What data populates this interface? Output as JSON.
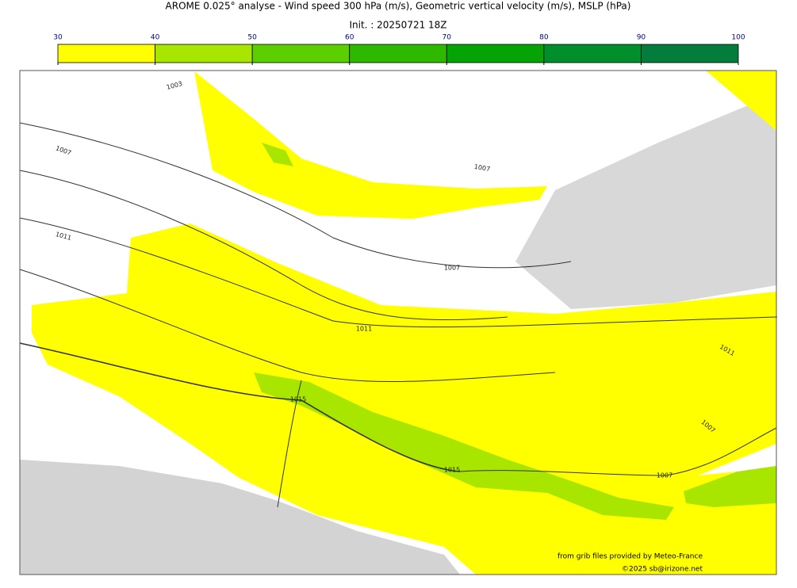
{
  "header": {
    "title": "AROME 0.025° analyse - Wind speed 300 hPa (m/s), Geometric vertical velocity (m/s), MSLP (hPa)",
    "subtitle": "Init. : 20250721 18Z"
  },
  "colorbar": {
    "ticks": [
      30,
      40,
      50,
      60,
      70,
      80,
      90,
      100
    ],
    "colors": [
      "#ffff00",
      "#a8e600",
      "#5ccf00",
      "#2fb800",
      "#06a306",
      "#018f2b",
      "#037c3c"
    ]
  },
  "isobar_labels": [
    "1003",
    "1007",
    "1011",
    "1007",
    "1007",
    "1011",
    "1015",
    "1015",
    "1011",
    "1007",
    "1007"
  ],
  "credits": [
    "from grib files provided by Meteo-France",
    "©2025 sb@irizone.net"
  ]
}
